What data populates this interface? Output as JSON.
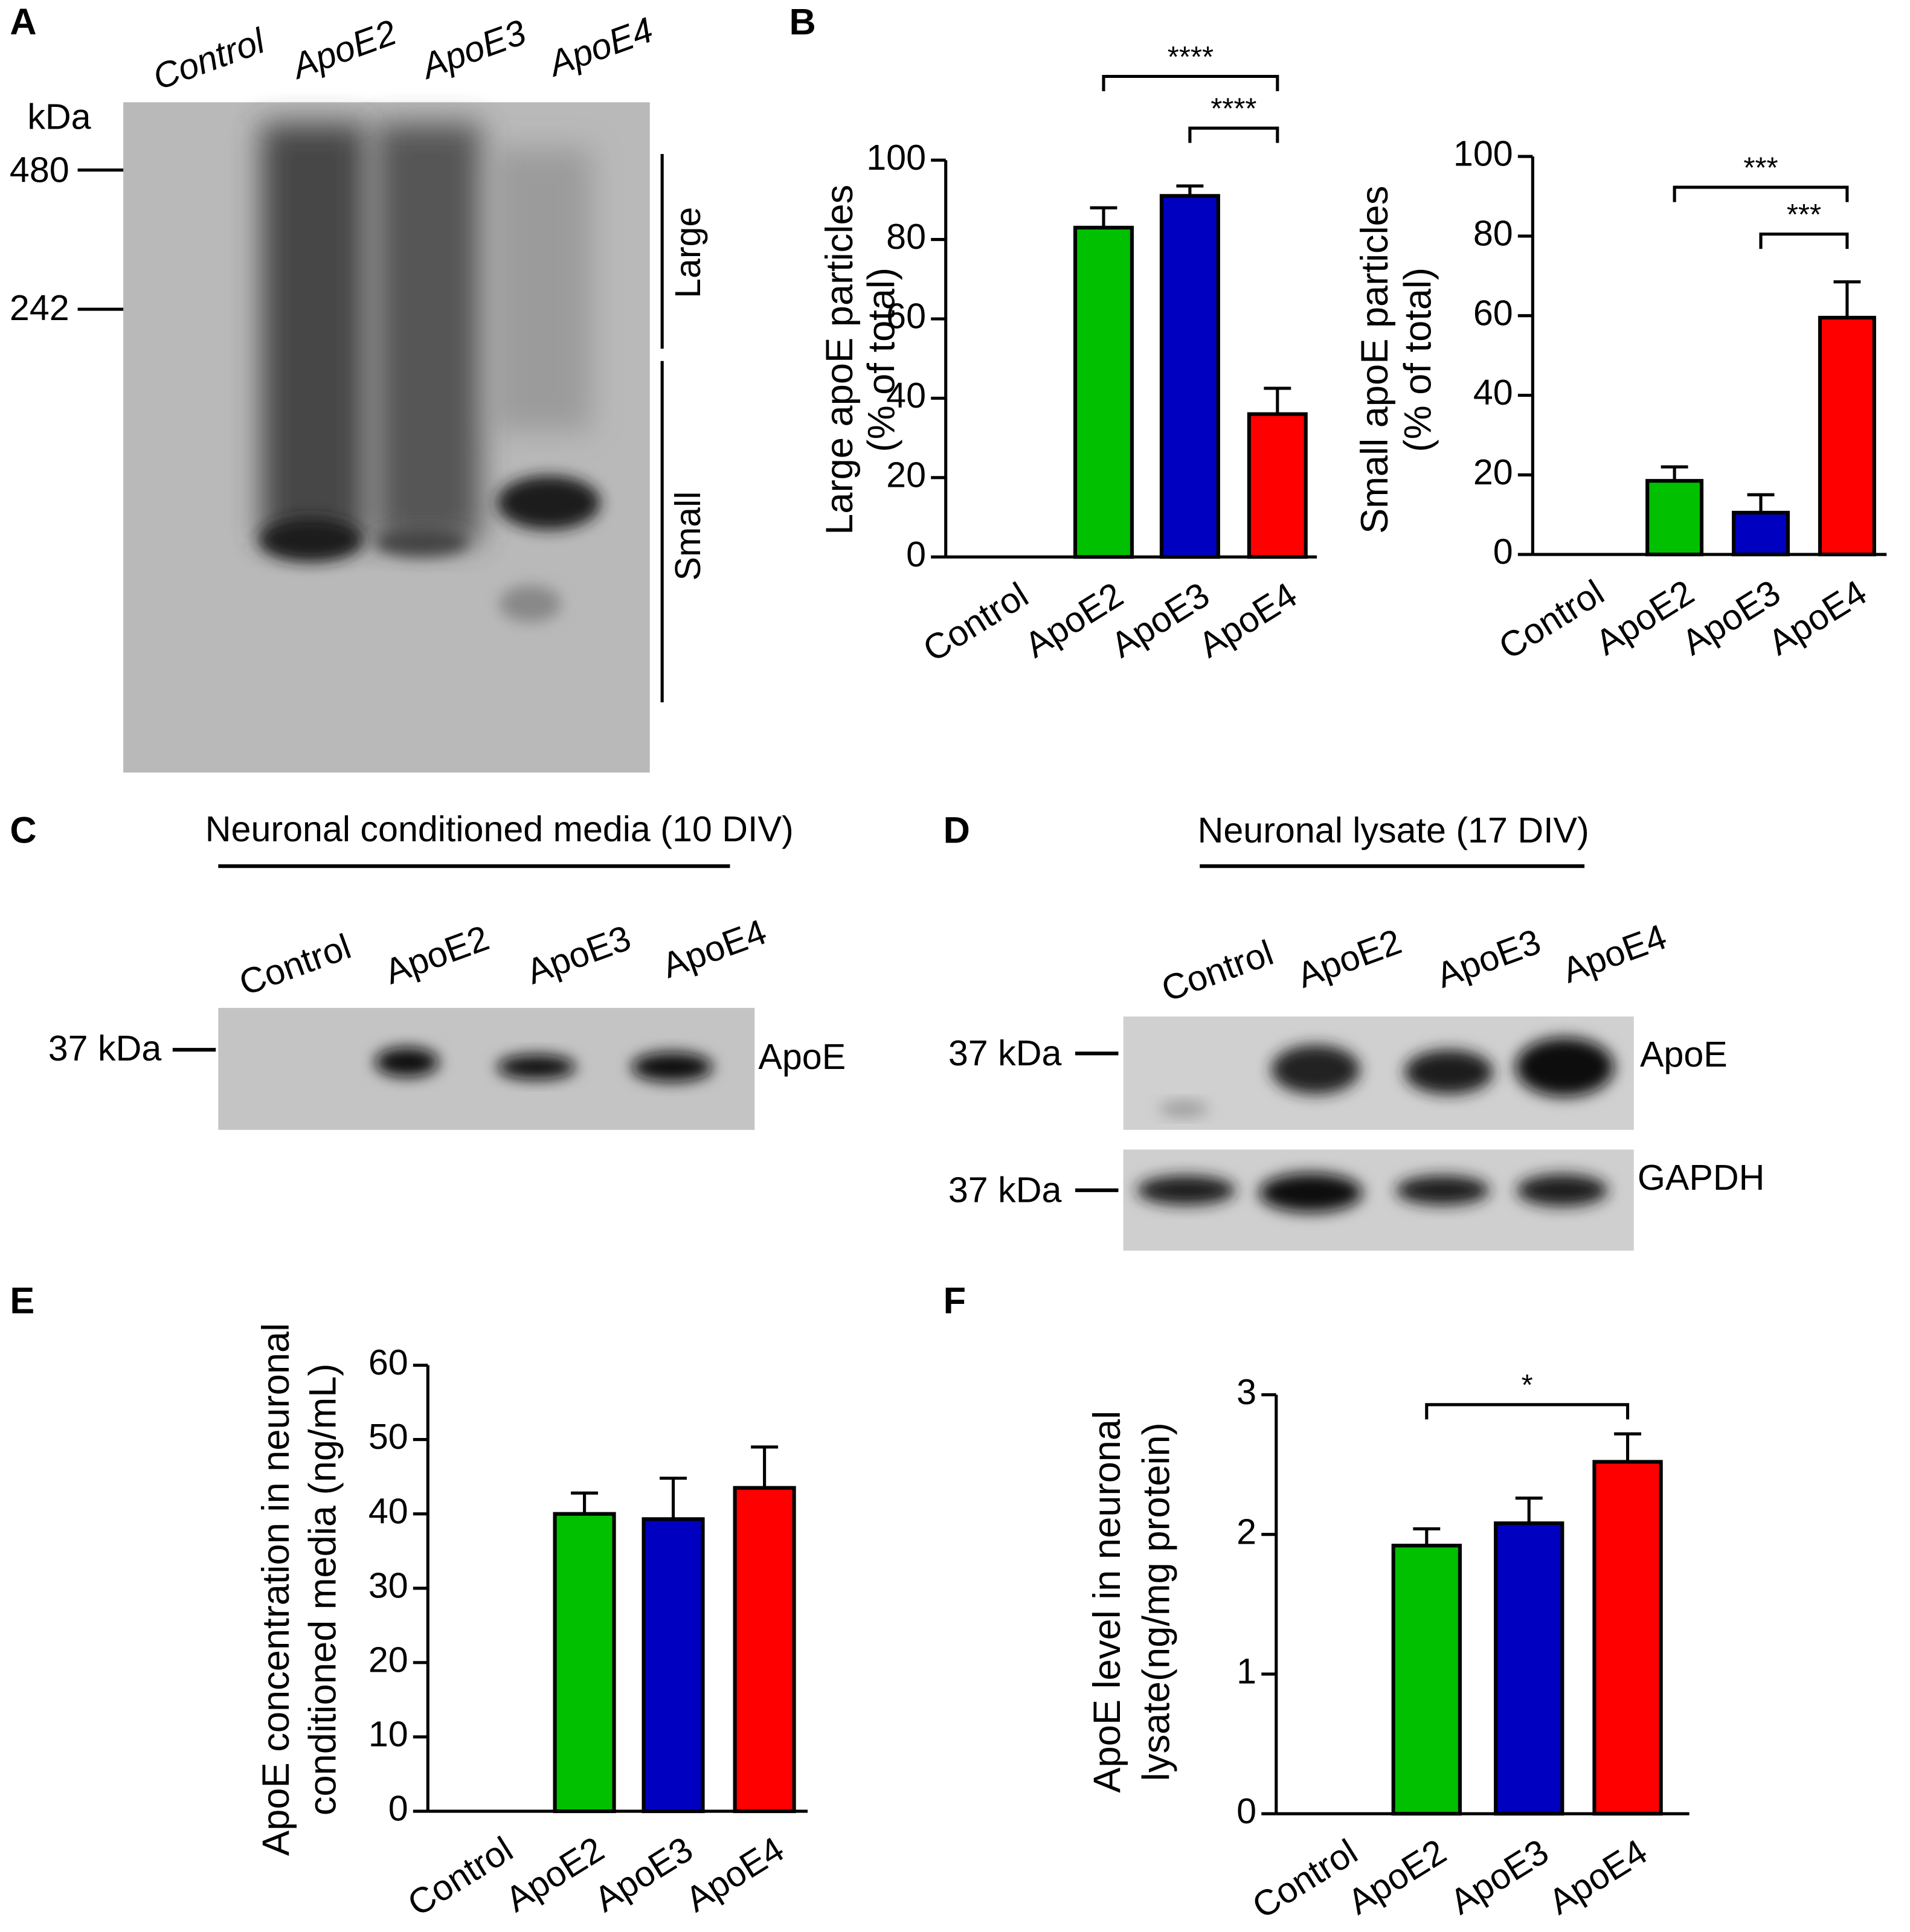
{
  "panel_labels": [
    "A",
    "B",
    "C",
    "D",
    "E",
    "F"
  ],
  "blots": {
    "A": {
      "lanes": [
        "Control",
        "ApoE2",
        "ApoE3",
        "ApoE4"
      ],
      "unit": "kDa",
      "markers": [
        "480",
        "242"
      ],
      "regions": [
        "Large",
        "Small"
      ]
    },
    "C": {
      "title": "Neuronal conditioned media (10 DIV)",
      "lanes": [
        "Control",
        "ApoE2",
        "ApoE3",
        "ApoE4"
      ],
      "marker": "37 kDa",
      "band": "ApoE"
    },
    "D": {
      "title": "Neuronal lysate (17 DIV)",
      "lanes": [
        "Control",
        "ApoE2",
        "ApoE3",
        "ApoE4"
      ],
      "markers": [
        "37 kDa",
        "37 kDa"
      ],
      "bands": [
        "ApoE",
        "GAPDH"
      ]
    }
  },
  "chart_data": [
    {
      "type": "bar",
      "ylabel": [
        "Large apoE particles",
        "(% of total)"
      ],
      "categories": [
        "Control",
        "ApoE2",
        "ApoE3",
        "ApoE4"
      ],
      "values": [
        0,
        83,
        91,
        36
      ],
      "errors": [
        0,
        5,
        2.5,
        6.5
      ],
      "colors": [
        "#ffffff",
        "#00c000",
        "#0000c0",
        "#ff0000"
      ],
      "ylim": [
        0,
        100
      ],
      "yticks": [
        0,
        20,
        40,
        60,
        80,
        100
      ],
      "comparisons": [
        {
          "from": 1,
          "to": 3,
          "label": "****"
        },
        {
          "from": 2,
          "to": 3,
          "label": "****"
        }
      ]
    },
    {
      "type": "bar",
      "ylabel": [
        "Small apoE particles",
        "(% of total)"
      ],
      "categories": [
        "Control",
        "ApoE2",
        "ApoE3",
        "ApoE4"
      ],
      "values": [
        0,
        18.5,
        10.5,
        59.5
      ],
      "errors": [
        0,
        3.5,
        4.5,
        9
      ],
      "colors": [
        "#ffffff",
        "#00c000",
        "#0000c0",
        "#ff0000"
      ],
      "ylim": [
        0,
        100
      ],
      "yticks": [
        0,
        20,
        40,
        60,
        80,
        100
      ],
      "comparisons": [
        {
          "from": 1,
          "to": 3,
          "label": "***"
        },
        {
          "from": 2,
          "to": 3,
          "label": "***"
        }
      ]
    },
    {
      "type": "bar",
      "ylabel": [
        "ApoE concentration in neuronal",
        "conditioned media  (ng/mL)"
      ],
      "categories": [
        "Control",
        "ApoE2",
        "ApoE3",
        "ApoE4"
      ],
      "values": [
        0,
        40,
        39.3,
        43.5
      ],
      "errors": [
        0,
        2.8,
        5.5,
        5.5
      ],
      "colors": [
        "#ffffff",
        "#00c000",
        "#0000c0",
        "#ff0000"
      ],
      "ylim": [
        0,
        60
      ],
      "yticks": [
        0,
        10,
        20,
        30,
        40,
        50,
        60
      ],
      "comparisons": []
    },
    {
      "type": "bar",
      "ylabel": [
        "ApoE level in neuronal",
        "lysate(ng/mg protein)"
      ],
      "categories": [
        "Control",
        "ApoE2",
        "ApoE3",
        "ApoE4"
      ],
      "values": [
        0,
        1.92,
        2.08,
        2.52
      ],
      "errors": [
        0,
        0.12,
        0.18,
        0.2
      ],
      "colors": [
        "#ffffff",
        "#00c000",
        "#0000c0",
        "#ff0000"
      ],
      "ylim": [
        0,
        3
      ],
      "yticks": [
        0,
        1,
        2,
        3
      ],
      "comparisons": [
        {
          "from": 1,
          "to": 3,
          "label": "*"
        }
      ]
    }
  ]
}
